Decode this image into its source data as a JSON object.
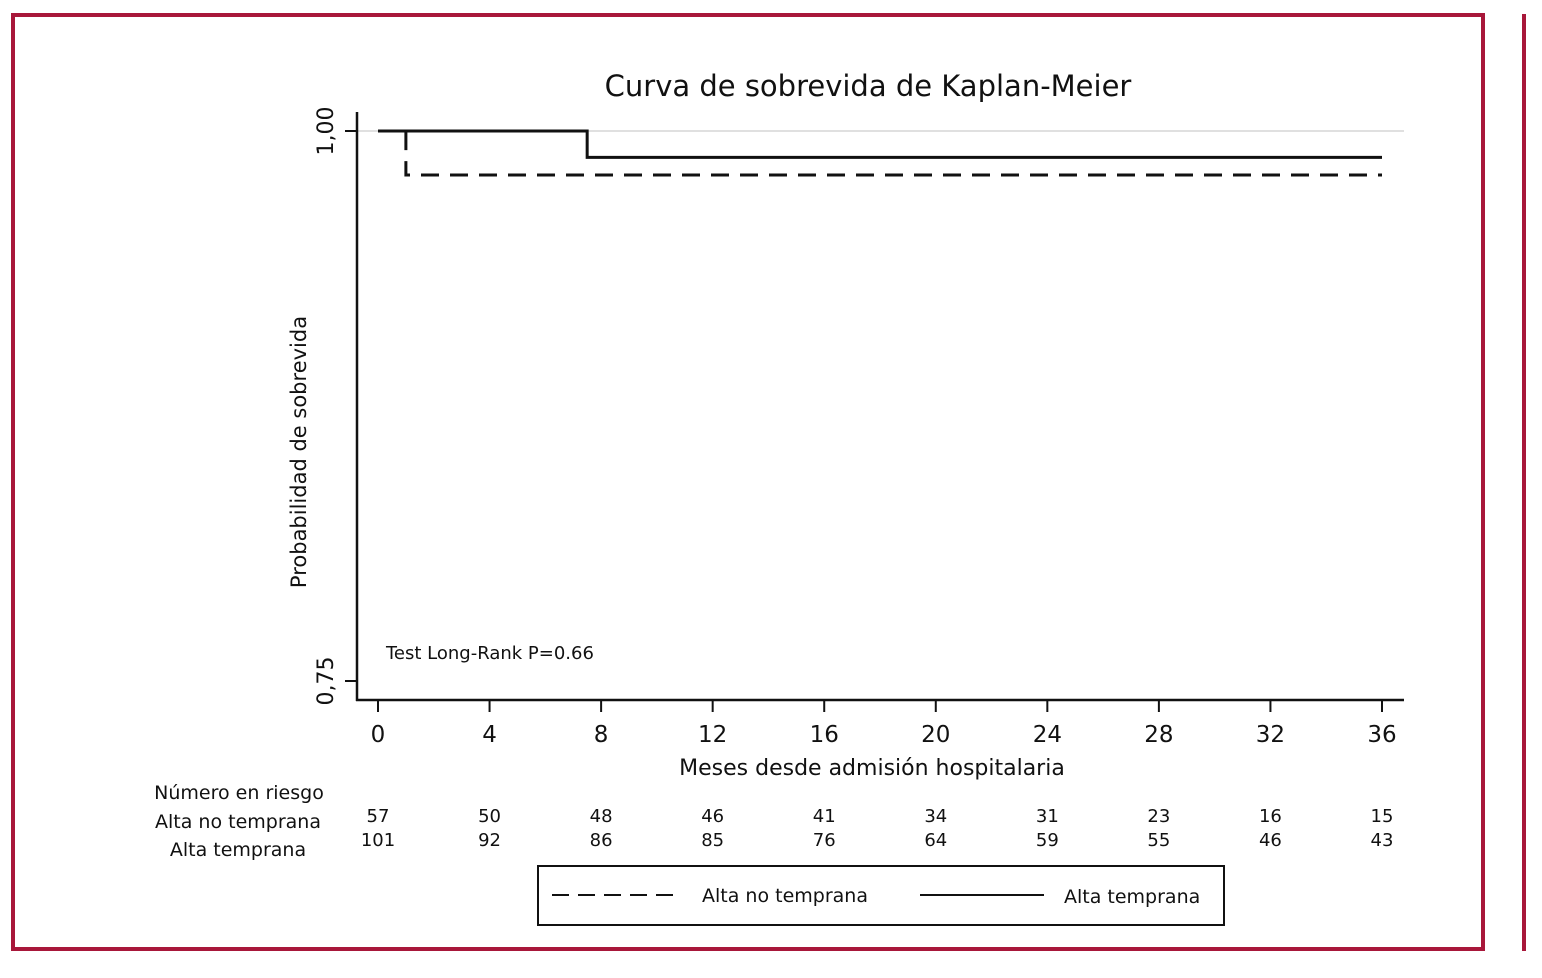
{
  "chart_data": {
    "type": "line",
    "subtype": "kaplan-meier-step",
    "title": "Curva de sobrevida de Kaplan-Meier",
    "xlabel": "Meses desde admisión hospitalaria",
    "ylabel": "Probabilidad de sobrevida",
    "xlim": [
      0,
      36
    ],
    "ylim": [
      0.75,
      1.0
    ],
    "x_ticks": [
      0,
      4,
      8,
      12,
      16,
      20,
      24,
      28,
      32,
      36
    ],
    "y_ticks": [
      "0,75",
      "1,00"
    ],
    "grid": false,
    "annotation": "Test Long-Rank P=0.66",
    "series": [
      {
        "name": "Alta no temprana",
        "style": "dashed",
        "steps": [
          {
            "x": 0,
            "y": 1.0
          },
          {
            "x": 1.0,
            "y": 0.98
          },
          {
            "x": 36,
            "y": 0.98
          }
        ]
      },
      {
        "name": "Alta temprana",
        "style": "solid",
        "steps": [
          {
            "x": 0,
            "y": 1.0
          },
          {
            "x": 7.5,
            "y": 0.988
          },
          {
            "x": 36,
            "y": 0.988
          }
        ]
      }
    ],
    "risk_table": {
      "header": "Número en riesgo",
      "rows": [
        {
          "label": "Alta no temprana",
          "values": [
            57,
            50,
            48,
            46,
            41,
            34,
            31,
            23,
            16,
            15
          ]
        },
        {
          "label": "Alta temprana",
          "values": [
            101,
            92,
            86,
            85,
            76,
            64,
            59,
            55,
            46,
            43
          ]
        }
      ]
    },
    "legend": {
      "position": "bottom",
      "entries": [
        "Alta no temprana",
        "Alta temprana"
      ]
    }
  },
  "colors": {
    "frame": "#a8173a",
    "line": "#111111",
    "ref": "#e0e0e0"
  }
}
